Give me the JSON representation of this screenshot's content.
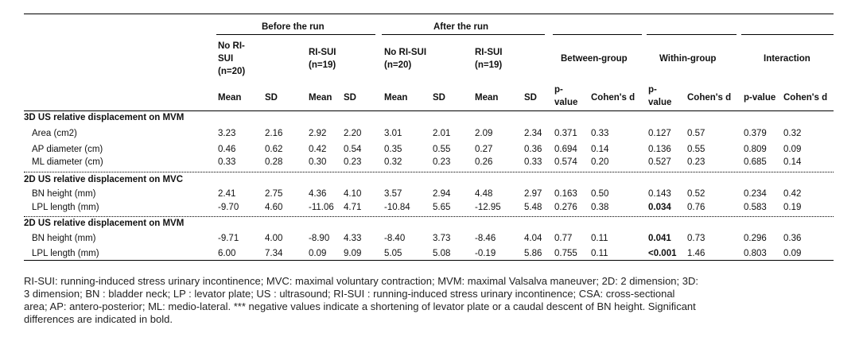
{
  "header": {
    "before": "Before the run",
    "after": "After the run",
    "groups": [
      {
        "lines": [
          "No RI-",
          "SUI",
          "(n=20)"
        ]
      },
      {
        "lines": [
          "RI-SUI",
          "(n=19)"
        ]
      },
      {
        "lines": [
          "No RI-SUI",
          "(n=20)"
        ]
      },
      {
        "lines": [
          "RI-SUI",
          "(n=19)"
        ]
      }
    ],
    "between": "Between-group",
    "within": "Within-group",
    "interaction": "Interaction",
    "sub": [
      "Mean",
      "SD",
      "Mean",
      "SD",
      "Mean",
      "SD",
      "Mean",
      "SD"
    ],
    "p": [
      "p-",
      "value"
    ],
    "d": "Cohen's d",
    "pvalue": "p-value"
  },
  "sections": [
    {
      "title": "3D US relative displacement on MVM",
      "rows": [
        {
          "label": "Area (cm2)",
          "v": [
            "3.23",
            "2.16",
            "2.92",
            "2.20",
            "3.01",
            "2.01",
            "2.09",
            "2.34",
            "0.371",
            "0.33",
            "0.127",
            "0.57",
            "0.379",
            "0.32"
          ],
          "bold": []
        },
        {
          "label": "AP diameter (cm)",
          "v": [
            "0.46",
            "0.62",
            "0.42",
            "0.54",
            "0.35",
            "0.55",
            "0.27",
            "0.36",
            "0.694",
            "0.14",
            "0.136",
            "0.55",
            "0.809",
            "0.09"
          ],
          "bold": []
        },
        {
          "label": "ML diameter (cm)",
          "v": [
            "0.33",
            "0.28",
            "0.30",
            "0.23",
            "0.32",
            "0.23",
            "0.26",
            "0.33",
            "0.574",
            "0.20",
            "0.527",
            "0.23",
            "0.685",
            "0.14"
          ],
          "bold": []
        }
      ]
    },
    {
      "title": "2D US relative displacement on MVC",
      "rows": [
        {
          "label": "BN height (mm)",
          "v": [
            "2.41",
            "2.75",
            "4.36",
            "4.10",
            "3.57",
            "2.94",
            "4.48",
            "2.97",
            "0.163",
            "0.50",
            "0.143",
            "0.52",
            "0.234",
            "0.42"
          ],
          "bold": []
        },
        {
          "label": "LPL length (mm)",
          "v": [
            "-9.70",
            "4.60",
            "-11.06",
            "4.71",
            "-10.84",
            "5.65",
            "-12.95",
            "5.48",
            "0.276",
            "0.38",
            "0.034",
            "0.76",
            "0.583",
            "0.19"
          ],
          "bold": [
            10
          ]
        }
      ]
    },
    {
      "title": "2D US relative displacement on MVM",
      "rows": [
        {
          "label": "BN height (mm)",
          "v": [
            "-9.71",
            "4.00",
            "-8.90",
            "4.33",
            "-8.40",
            "3.73",
            "-8.46",
            "4.04",
            "0.77",
            "0.11",
            "0.041",
            "0.73",
            "0.296",
            "0.36"
          ],
          "bold": [
            10
          ]
        },
        {
          "label": "LPL length (mm)",
          "v": [
            "6.00",
            "7.34",
            "0.09",
            "9.09",
            "5.05",
            "5.08",
            "-0.19",
            "5.86",
            "0.755",
            "0.11",
            "<0.001",
            "1.46",
            "0.803",
            "0.09"
          ],
          "bold": [
            10
          ]
        }
      ]
    }
  ],
  "notes": [
    "RI-SUI: running-induced stress urinary incontinence; MVC: maximal voluntary contraction; MVM: maximal Valsalva maneuver; 2D: 2 dimension; 3D:",
    "3 dimension; BN : bladder neck; LP : levator plate; US : ultrasound; RI-SUI : running-induced stress urinary incontinence; CSA: cross-sectional",
    "area; AP: antero-posterior; ML: medio-lateral. *** negative values indicate a shortening of levator plate or a caudal descent of BN height. Significant",
    "differences are indicated in bold."
  ]
}
